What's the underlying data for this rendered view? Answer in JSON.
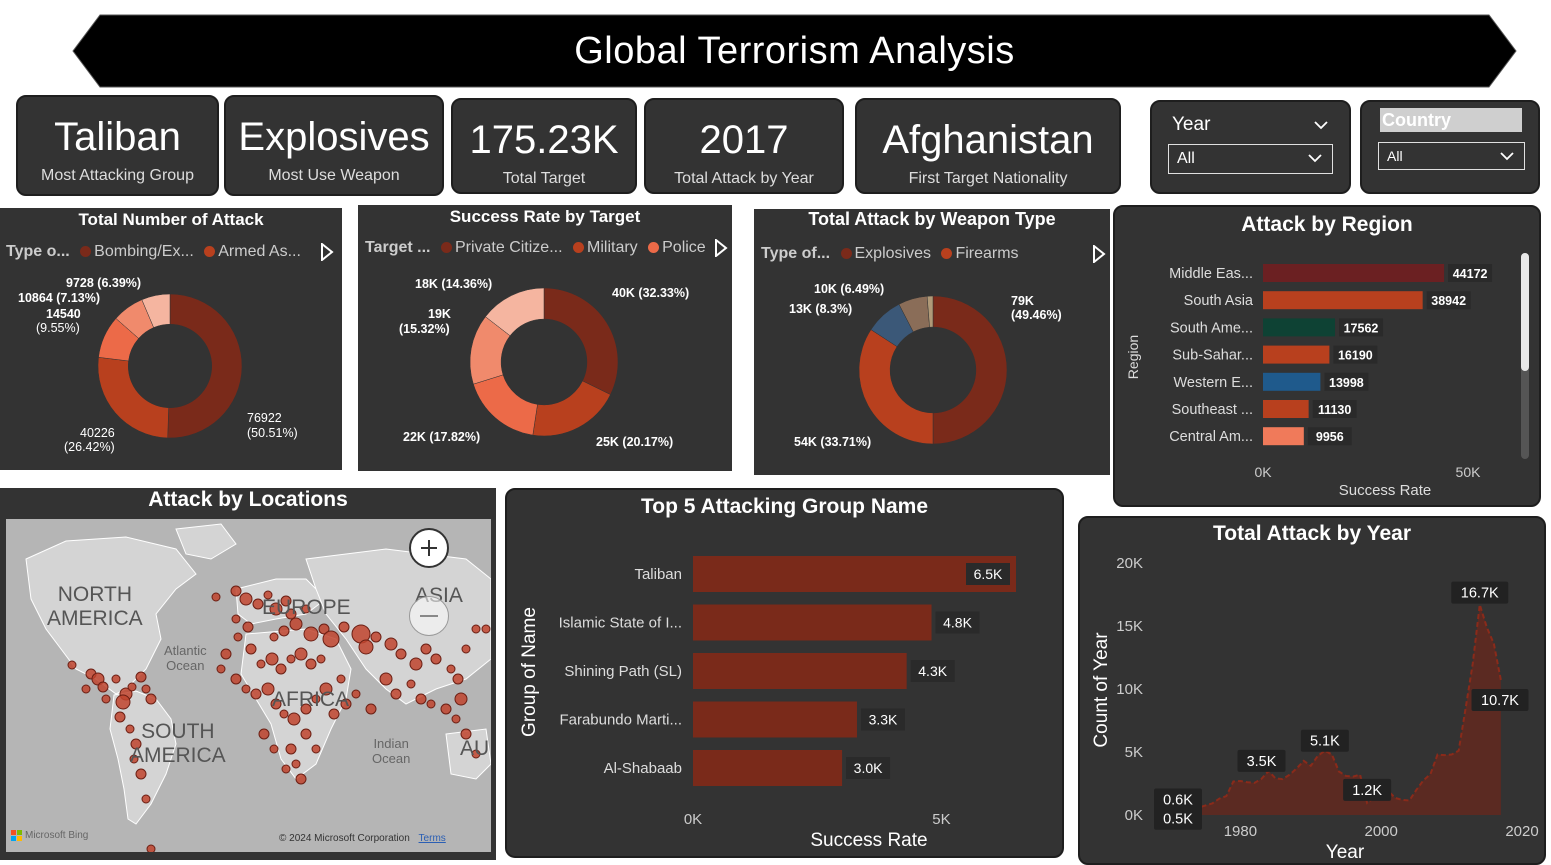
{
  "header": {
    "title": "Global Terrorism Analysis"
  },
  "kpis": [
    {
      "value": "Taliban",
      "label": "Most Attacking Group"
    },
    {
      "value": "Explosives",
      "label": "Most Use Weapon"
    },
    {
      "value": "175.23K",
      "label": "Total Target"
    },
    {
      "value": "2017",
      "label": "Total Attack by Year"
    },
    {
      "value": "Afghanistan",
      "label": "First Target Nationality"
    }
  ],
  "slicers": {
    "year": {
      "label": "Year",
      "value": "All"
    },
    "country": {
      "label": "Country",
      "value": "All"
    }
  },
  "donut_attack": {
    "title": "Total Number of Attack",
    "legend_title": "Type o...",
    "legend": [
      "Bombing/Ex...",
      "Armed As..."
    ],
    "labels": [
      "9728 (6.39%)",
      "10864 (7.13%)",
      "14540",
      "(9.55%)",
      "40226",
      "(26.42%)",
      "76922",
      "(50.51%)"
    ]
  },
  "donut_success": {
    "title": "Success Rate by Target",
    "legend_title": "Target ...",
    "legend": [
      "Private Citize...",
      "Military",
      "Police"
    ],
    "labels": [
      "18K (14.36%)",
      "19K",
      "(15.32%)",
      "40K (32.33%)",
      "22K (17.82%)",
      "25K (20.17%)"
    ]
  },
  "donut_weapon": {
    "title": "Total Attack by Weapon Type",
    "legend_title": "Type of...",
    "legend": [
      "Explosives",
      "Firearms"
    ],
    "labels": [
      "10K (6.49%)",
      "13K (8.3%)",
      "79K",
      "(49.46%)",
      "54K (33.71%)"
    ]
  },
  "map": {
    "title": "Attack by Locations",
    "labels": [
      "NORTH",
      "AMERICA",
      "EUROPE",
      "ASIA",
      "Atlantic",
      "Ocean",
      "AFRICA",
      "SOUTH",
      "AMERICA",
      "Indian",
      "Ocean",
      "AU"
    ],
    "copyright": "© 2024 Microsoft Corporation",
    "terms": "Terms",
    "bing": "Microsoft Bing"
  },
  "chart_data": [
    {
      "type": "pie",
      "title": "Total Number of Attack",
      "categories": [
        "Bombing/Ex...",
        "Armed As...",
        "",
        "",
        ""
      ],
      "values": [
        76922,
        40226,
        14540,
        10864,
        9728
      ],
      "colors": [
        "#7a2a1a",
        "#b8401e",
        "#ec6a48",
        "#f08a6c",
        "#f5b5a0"
      ]
    },
    {
      "type": "pie",
      "title": "Success Rate by Target",
      "categories": [
        "Private Citize...",
        "Military",
        "Police",
        "",
        ""
      ],
      "values": [
        40,
        25,
        22,
        19,
        18
      ],
      "colors": [
        "#7a2a1a",
        "#b8401e",
        "#ec6a48",
        "#f08a6c",
        "#f5b5a0"
      ]
    },
    {
      "type": "pie",
      "title": "Total Attack by Weapon Type",
      "categories": [
        "Explosives",
        "Firearms",
        "",
        "",
        ""
      ],
      "values": [
        79,
        54,
        13,
        10,
        2
      ],
      "colors": [
        "#7a2a1a",
        "#b8401e",
        "#3b5878",
        "#8a6d58",
        "#b09a78"
      ]
    },
    {
      "type": "bar",
      "title": "Attack by Region",
      "categories": [
        "Middle Eas...",
        "South Asia",
        "South Ame...",
        "Sub-Sahar...",
        "Western E...",
        "Southeast ...",
        "Central Am..."
      ],
      "values": [
        44172,
        38942,
        17562,
        16190,
        13998,
        11130,
        9956
      ],
      "colors": [
        "#6b2022",
        "#b8401e",
        "#0e4234",
        "#b8401e",
        "#1f5a8c",
        "#b8401e",
        "#f07a5a"
      ],
      "xlabel": "Success Rate",
      "ylabel": "Region",
      "xlim": [
        0,
        50000
      ],
      "xticks": [
        "0K",
        "50K"
      ]
    },
    {
      "type": "bar",
      "title": "Top 5 Attacking Group Name",
      "categories": [
        "Taliban",
        "Islamic State of I...",
        "Shining Path (SL)",
        "Farabundo Marti...",
        "Al-Shabaab"
      ],
      "values": [
        6.5,
        4.8,
        4.3,
        3.3,
        3.0
      ],
      "value_labels": [
        "6.5K",
        "4.8K",
        "4.3K",
        "3.3K",
        "3.0K"
      ],
      "xlabel": "Success Rate",
      "ylabel": "Group of Name",
      "xlim": [
        0,
        6.5
      ],
      "xticks": [
        "0K",
        "5K"
      ]
    },
    {
      "type": "area",
      "title": "Total Attack by Year",
      "xlabel": "Year",
      "ylabel": "Count of Year",
      "xlim": [
        1970,
        2020
      ],
      "ylim": [
        0,
        20000
      ],
      "xticks": [
        "1980",
        "2000",
        "2020"
      ],
      "yticks": [
        "0K",
        "5K",
        "10K",
        "15K",
        "20K"
      ],
      "x": [
        1970,
        1971,
        1972,
        1973,
        1974,
        1975,
        1976,
        1977,
        1978,
        1979,
        1980,
        1981,
        1982,
        1983,
        1984,
        1985,
        1986,
        1987,
        1988,
        1989,
        1990,
        1991,
        1992,
        1993,
        1994,
        1995,
        1996,
        1997,
        1998,
        1999,
        2000,
        2001,
        2002,
        2003,
        2004,
        2005,
        2006,
        2007,
        2008,
        2009,
        2010,
        2011,
        2012,
        2013,
        2014,
        2015,
        2016,
        2017
      ],
      "y": [
        600,
        500,
        550,
        480,
        580,
        750,
        920,
        1300,
        1500,
        2660,
        2700,
        2600,
        2550,
        2870,
        3500,
        2900,
        2850,
        3200,
        3700,
        4300,
        3900,
        4700,
        5100,
        4800,
        3450,
        3100,
        3050,
        3200,
        950,
        1400,
        1800,
        1900,
        1350,
        1200,
        1150,
        2000,
        2750,
        3250,
        4800,
        4750,
        4800,
        5100,
        8500,
        12000,
        16700,
        14900,
        13600,
        10700
      ],
      "labels": [
        "0.6K",
        "0.5K",
        "3.5K",
        "5.1K",
        "1.2K",
        "16.7K",
        "10.7K"
      ]
    }
  ]
}
